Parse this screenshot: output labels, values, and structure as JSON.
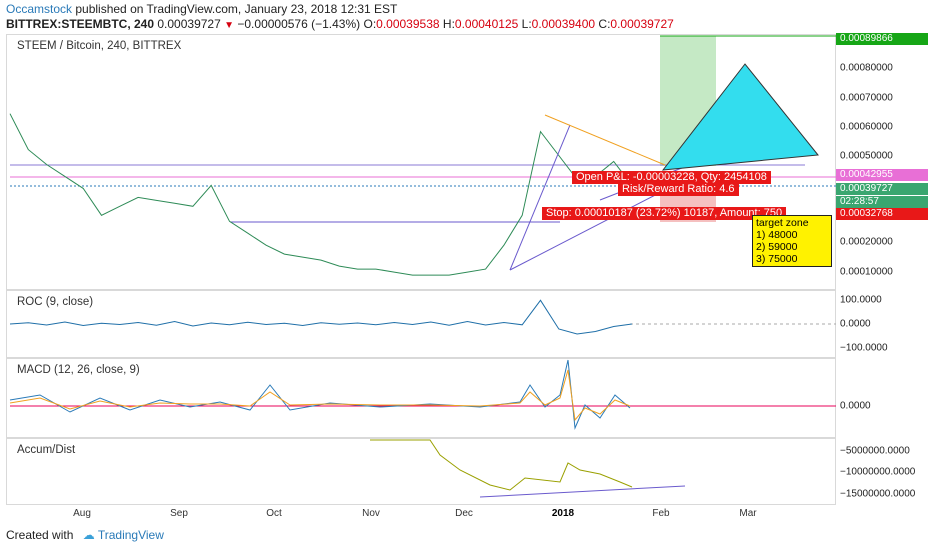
{
  "header": {
    "author": "Occamstock",
    "published": "published on TradingView.com, January 23, 2018 12:31 EST",
    "symbol": "BITTREX:STEEMBTC, 240",
    "last": "0.00039727",
    "change": "−0.00000576 (−1.43%)",
    "o_label": "O:",
    "o": "0.00039538",
    "h_label": "H:",
    "h": "0.00040125",
    "l_label": "L:",
    "l": "0.00039400",
    "c_label": "C:",
    "c": "0.00039727"
  },
  "panes": {
    "main": "STEEM / Bitcoin, 240, BITTREX",
    "roc": "ROC (9, close)",
    "macd": "MACD (12, 26, close, 9)",
    "ad": "Accum/Dist"
  },
  "price_axis": [
    "0.00080000",
    "0.00070000",
    "0.00060000",
    "0.00050000",
    "0.00020000",
    "0.00010000"
  ],
  "price_tags": {
    "top": "0.00089866",
    "a": "0.00042955",
    "b": "0.00039727",
    "timer": "02:28:57",
    "stop": "0.00032768"
  },
  "roc_axis": [
    "100.0000",
    "0.0000",
    "−100.0000"
  ],
  "macd_axis": [
    "0.0000"
  ],
  "ad_axis": [
    "−5000000.0000",
    "−10000000.0000",
    "−15000000.0000"
  ],
  "x_axis": [
    "Aug",
    "Sep",
    "Oct",
    "Nov",
    "Dec",
    "2018",
    "Feb",
    "Mar"
  ],
  "position": {
    "pnl": "Open P&L: -0.00003228, Qty: 2454108",
    "rr": "Risk/Reward Ratio: 4.6",
    "stop": "Stop: 0.00010187 (23.72%) 10187, Amount: 750"
  },
  "target_zone": {
    "title": "target zone",
    "items": [
      "1) 48000",
      "2) 59000",
      "3) 75000"
    ]
  },
  "footer": {
    "created": "Created with",
    "brand": "TradingView"
  },
  "colors": {
    "up": "#2e8b57",
    "down": "#b22234",
    "roc": "#1f6fa8",
    "macd": "#2a7ab8",
    "signal": "#f0a020",
    "hist": "#e8005a",
    "ad": "#9aa000",
    "target": "#33ddee"
  },
  "chart_data": {
    "type": "candlestick",
    "title": "STEEM / Bitcoin, 240, BITTREX",
    "x_labels": [
      "Aug",
      "Sep",
      "Oct",
      "Nov",
      "Dec",
      "2018",
      "Feb",
      "Mar"
    ],
    "price_series": [
      0.00064,
      0.00052,
      0.00047,
      0.00043,
      0.00039,
      0.0003,
      0.00033,
      0.00036,
      0.00035,
      0.00034,
      0.00033,
      0.0004,
      0.00028,
      0.00024,
      0.0002,
      0.00017,
      0.00016,
      0.00015,
      0.00013,
      0.00012,
      0.00012,
      0.00011,
      0.0001,
      0.0001,
      0.0001,
      0.00011,
      0.00012,
      0.0002,
      0.0003,
      0.00058,
      0.0005,
      0.00042,
      0.00043,
      0.00048,
      0.0004
    ],
    "roc_series": [
      0,
      5,
      -4,
      8,
      -6,
      3,
      -2,
      6,
      -5,
      10,
      -8,
      4,
      -3,
      7,
      -2,
      3,
      -6,
      5,
      -1,
      4,
      -3,
      6,
      -2,
      8,
      -5,
      10,
      -4,
      6,
      -3,
      95,
      -20,
      -40,
      -30,
      -10,
      0
    ],
    "ylim": [
      5e-05,
      0.0009
    ]
  }
}
